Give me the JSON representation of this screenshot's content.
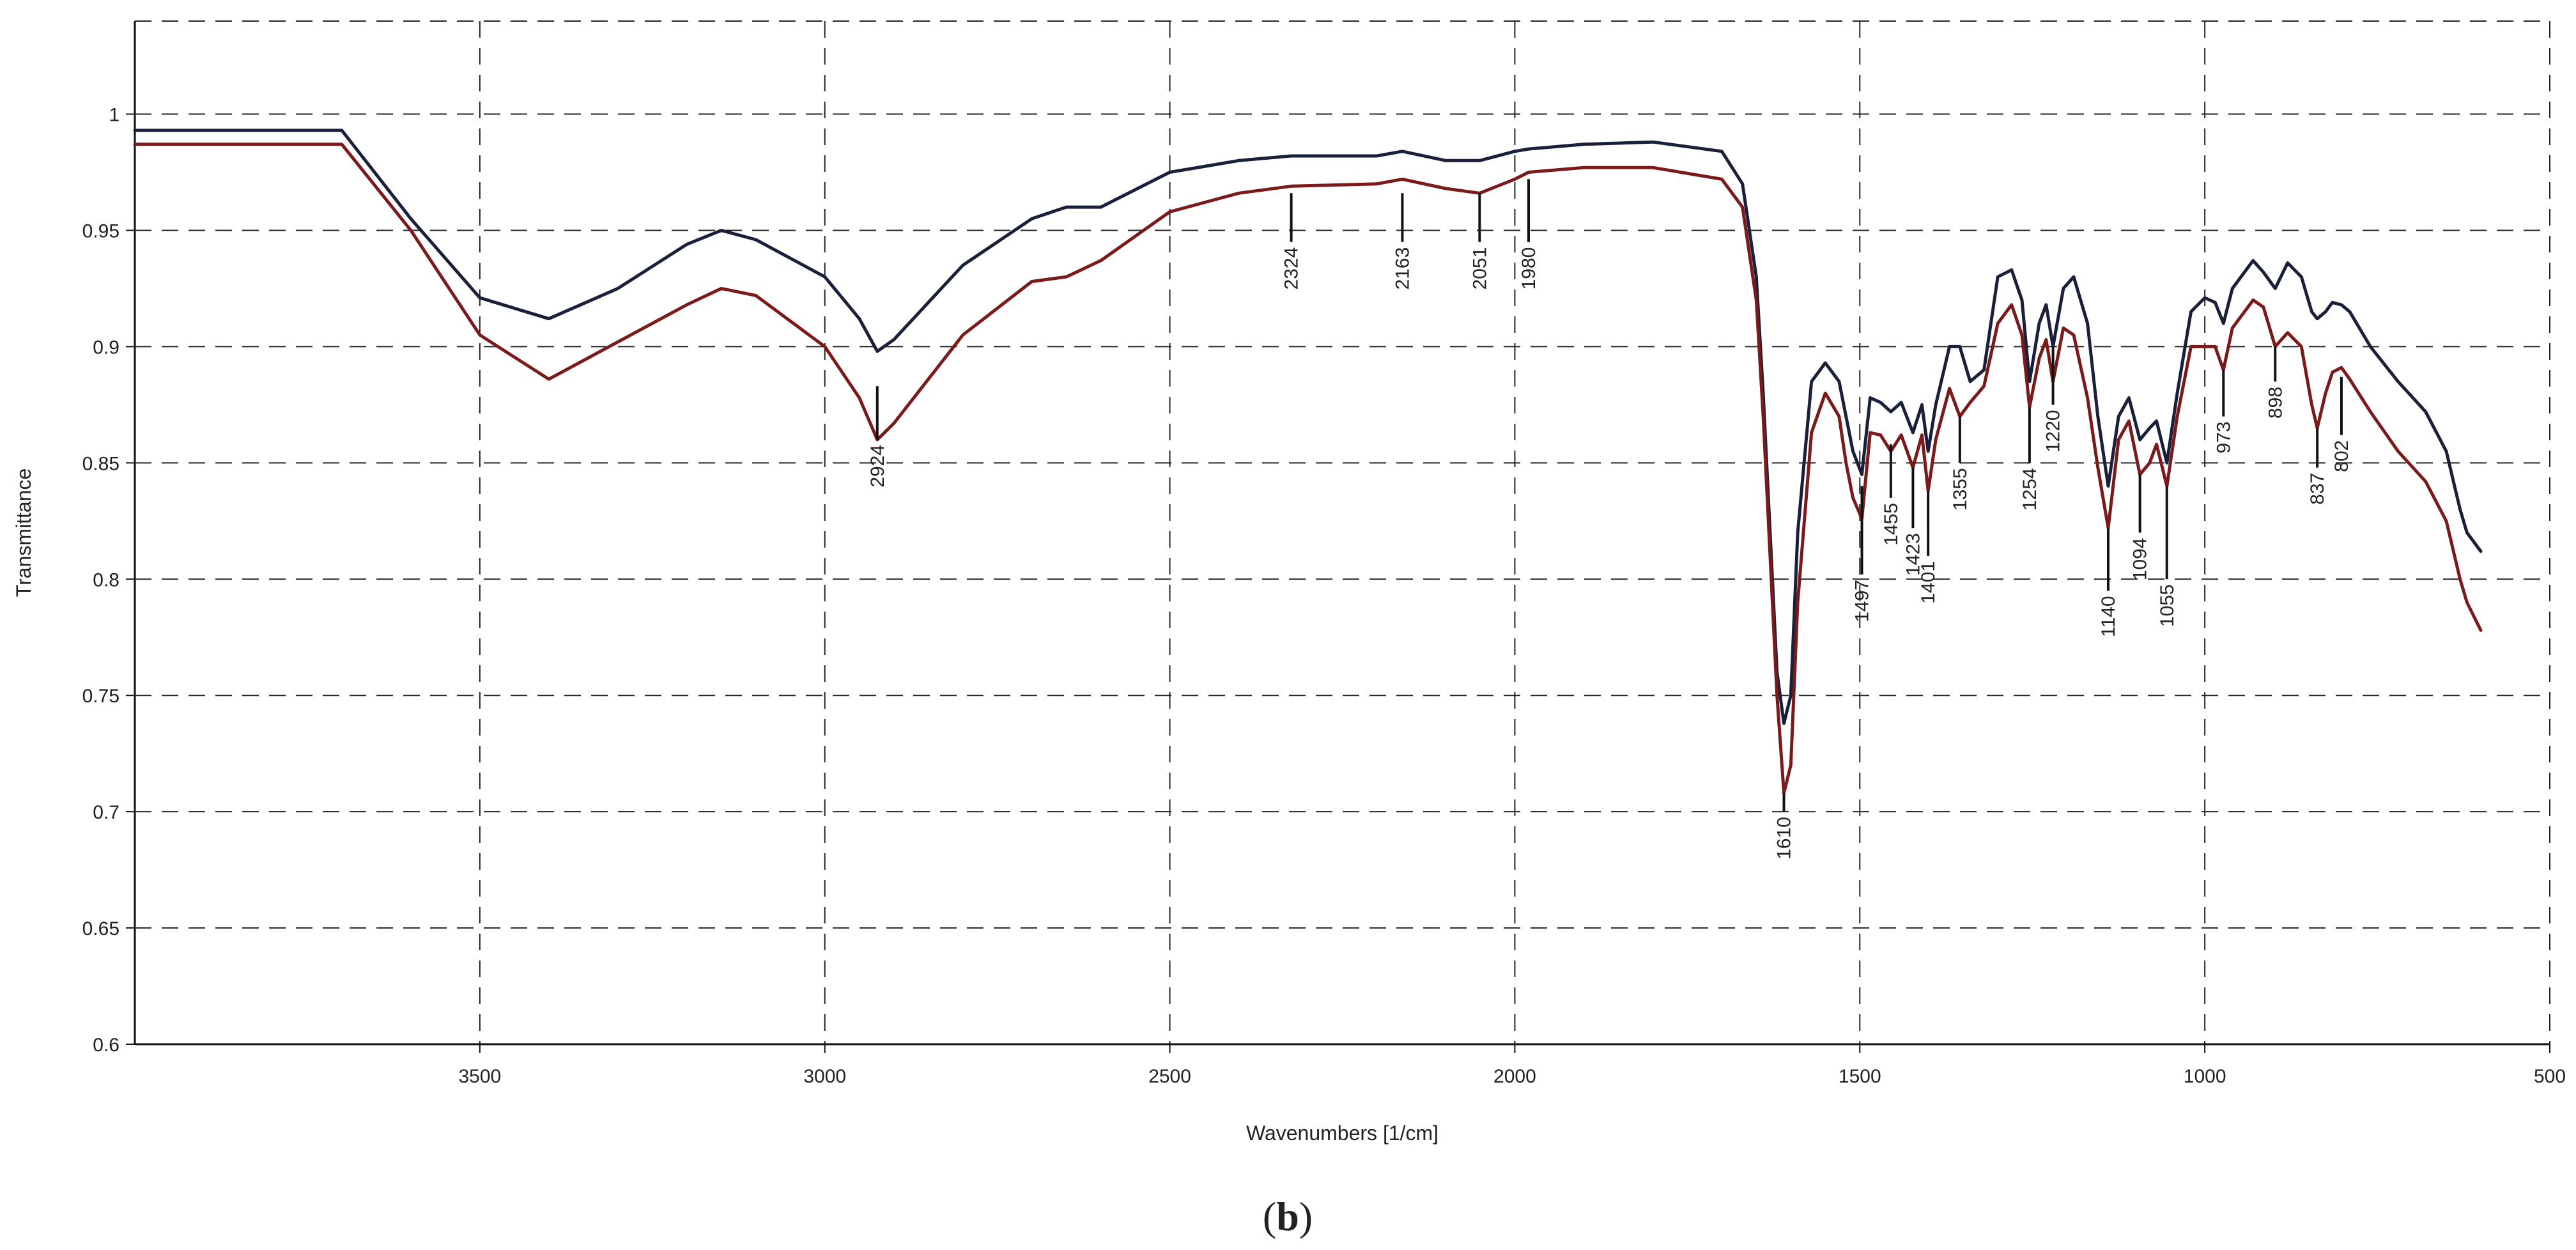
{
  "panel_label": {
    "open": "(",
    "letter": "b",
    "close": ")"
  },
  "colors": {
    "series_black": "#1a1f3a",
    "series_red": "#7a1a1a",
    "grid": "#222222",
    "axis": "#111111"
  },
  "chart_data": {
    "type": "line",
    "xlabel": "Wavenumbers [1/cm]",
    "ylabel": "Transmittance",
    "xlim": [
      4000,
      500
    ],
    "ylim": [
      0.6,
      1.04
    ],
    "x_reversed": true,
    "x_ticks": [
      "3500",
      "3000",
      "2500",
      "2000",
      "1500",
      "1000",
      "500"
    ],
    "x_tick_values": [
      3500,
      3000,
      2500,
      2000,
      1500,
      1000,
      500
    ],
    "y_ticks": [
      "0.6",
      "0.65",
      "0.7",
      "0.75",
      "0.8",
      "0.85",
      "0.9",
      "0.95",
      "1"
    ],
    "y_tick_values": [
      0.6,
      0.65,
      0.7,
      0.75,
      0.8,
      0.85,
      0.9,
      0.95,
      1.0
    ],
    "grid": true,
    "grid_style": "dashed",
    "series": [
      {
        "color": "#1a1f3a",
        "x": [
          4000,
          3700,
          3600,
          3500,
          3400,
          3300,
          3200,
          3150,
          3100,
          3000,
          2950,
          2924,
          2900,
          2800,
          2700,
          2650,
          2600,
          2500,
          2400,
          2324,
          2200,
          2163,
          2100,
          2051,
          2000,
          1980,
          1900,
          1800,
          1700,
          1670,
          1650,
          1640,
          1620,
          1610,
          1600,
          1590,
          1570,
          1550,
          1530,
          1520,
          1510,
          1497,
          1485,
          1470,
          1455,
          1440,
          1423,
          1410,
          1401,
          1390,
          1370,
          1355,
          1340,
          1320,
          1300,
          1280,
          1265,
          1254,
          1240,
          1230,
          1220,
          1205,
          1190,
          1170,
          1155,
          1140,
          1125,
          1110,
          1094,
          1080,
          1070,
          1055,
          1040,
          1020,
          1000,
          985,
          973,
          960,
          930,
          915,
          898,
          880,
          860,
          845,
          837,
          825,
          815,
          802,
          790,
          760,
          720,
          680,
          650,
          630,
          620,
          600
        ],
        "y": [
          0.993,
          0.993,
          0.955,
          0.921,
          0.912,
          0.925,
          0.944,
          0.95,
          0.946,
          0.93,
          0.912,
          0.898,
          0.903,
          0.935,
          0.955,
          0.96,
          0.96,
          0.975,
          0.98,
          0.982,
          0.982,
          0.984,
          0.98,
          0.98,
          0.984,
          0.985,
          0.987,
          0.988,
          0.984,
          0.97,
          0.93,
          0.88,
          0.76,
          0.738,
          0.75,
          0.82,
          0.885,
          0.893,
          0.885,
          0.87,
          0.855,
          0.845,
          0.878,
          0.876,
          0.872,
          0.876,
          0.863,
          0.875,
          0.855,
          0.875,
          0.9,
          0.9,
          0.885,
          0.89,
          0.93,
          0.933,
          0.92,
          0.885,
          0.91,
          0.918,
          0.9,
          0.925,
          0.93,
          0.91,
          0.87,
          0.84,
          0.87,
          0.878,
          0.86,
          0.865,
          0.868,
          0.85,
          0.88,
          0.915,
          0.921,
          0.919,
          0.91,
          0.925,
          0.937,
          0.932,
          0.925,
          0.936,
          0.93,
          0.915,
          0.912,
          0.915,
          0.919,
          0.918,
          0.915,
          0.9,
          0.885,
          0.872,
          0.855,
          0.83,
          0.82,
          0.812
        ]
      },
      {
        "color": "#7a1a1a",
        "x": [
          4000,
          3700,
          3600,
          3500,
          3400,
          3300,
          3200,
          3150,
          3100,
          3000,
          2950,
          2924,
          2900,
          2800,
          2700,
          2650,
          2600,
          2500,
          2400,
          2324,
          2200,
          2163,
          2100,
          2051,
          2000,
          1980,
          1900,
          1800,
          1700,
          1670,
          1650,
          1640,
          1620,
          1610,
          1600,
          1590,
          1570,
          1550,
          1530,
          1520,
          1510,
          1497,
          1485,
          1470,
          1455,
          1440,
          1423,
          1410,
          1401,
          1390,
          1370,
          1355,
          1340,
          1320,
          1300,
          1280,
          1265,
          1254,
          1240,
          1230,
          1220,
          1205,
          1190,
          1170,
          1155,
          1140,
          1125,
          1110,
          1094,
          1080,
          1070,
          1055,
          1040,
          1020,
          1000,
          985,
          973,
          960,
          930,
          915,
          898,
          880,
          860,
          845,
          837,
          825,
          815,
          802,
          790,
          760,
          720,
          680,
          650,
          630,
          620,
          600
        ],
        "y": [
          0.987,
          0.987,
          0.95,
          0.905,
          0.886,
          0.902,
          0.918,
          0.925,
          0.922,
          0.9,
          0.878,
          0.86,
          0.867,
          0.905,
          0.928,
          0.93,
          0.937,
          0.958,
          0.966,
          0.969,
          0.97,
          0.972,
          0.968,
          0.966,
          0.972,
          0.975,
          0.977,
          0.977,
          0.972,
          0.96,
          0.92,
          0.87,
          0.75,
          0.708,
          0.72,
          0.79,
          0.863,
          0.88,
          0.87,
          0.85,
          0.835,
          0.826,
          0.863,
          0.862,
          0.855,
          0.862,
          0.848,
          0.862,
          0.838,
          0.86,
          0.882,
          0.87,
          0.876,
          0.883,
          0.91,
          0.918,
          0.905,
          0.874,
          0.895,
          0.903,
          0.885,
          0.908,
          0.905,
          0.878,
          0.848,
          0.822,
          0.86,
          0.868,
          0.845,
          0.85,
          0.858,
          0.84,
          0.87,
          0.9,
          0.9,
          0.9,
          0.89,
          0.908,
          0.92,
          0.917,
          0.9,
          0.906,
          0.9,
          0.875,
          0.865,
          0.88,
          0.889,
          0.891,
          0.886,
          0.872,
          0.855,
          0.842,
          0.825,
          0.8,
          0.79,
          0.778
        ]
      }
    ],
    "annotations": [
      {
        "text": "2924",
        "x": 2924,
        "line_top": 0.883,
        "line_bottom": 0.86
      },
      {
        "text": "2324",
        "x": 2324,
        "line_top": 0.966,
        "line_bottom": 0.945
      },
      {
        "text": "2163",
        "x": 2163,
        "line_top": 0.966,
        "line_bottom": 0.945
      },
      {
        "text": "2051",
        "x": 2051,
        "line_top": 0.966,
        "line_bottom": 0.945
      },
      {
        "text": "1980",
        "x": 1980,
        "line_top": 0.972,
        "line_bottom": 0.945
      },
      {
        "text": "1610",
        "x": 1610,
        "line_top": 0.708,
        "line_bottom": 0.7
      },
      {
        "text": "1497",
        "x": 1497,
        "line_top": 0.84,
        "line_bottom": 0.802
      },
      {
        "text": "1455",
        "x": 1455,
        "line_top": 0.858,
        "line_bottom": 0.835
      },
      {
        "text": "1423",
        "x": 1423,
        "line_top": 0.848,
        "line_bottom": 0.822
      },
      {
        "text": "1401",
        "x": 1401,
        "line_top": 0.838,
        "line_bottom": 0.81
      },
      {
        "text": "1355",
        "x": 1355,
        "line_top": 0.87,
        "line_bottom": 0.85
      },
      {
        "text": "1254",
        "x": 1254,
        "line_top": 0.874,
        "line_bottom": 0.85
      },
      {
        "text": "1220",
        "x": 1220,
        "line_top": 0.9,
        "line_bottom": 0.875
      },
      {
        "text": "1140",
        "x": 1140,
        "line_top": 0.822,
        "line_bottom": 0.795
      },
      {
        "text": "1094",
        "x": 1094,
        "line_top": 0.845,
        "line_bottom": 0.82
      },
      {
        "text": "1055",
        "x": 1055,
        "line_top": 0.84,
        "line_bottom": 0.8
      },
      {
        "text": "973",
        "x": 973,
        "line_top": 0.89,
        "line_bottom": 0.87
      },
      {
        "text": "898",
        "x": 898,
        "line_top": 0.9,
        "line_bottom": 0.885
      },
      {
        "text": "837",
        "x": 837,
        "line_top": 0.865,
        "line_bottom": 0.848
      },
      {
        "text": "802",
        "x": 802,
        "line_top": 0.887,
        "line_bottom": 0.862
      }
    ]
  }
}
